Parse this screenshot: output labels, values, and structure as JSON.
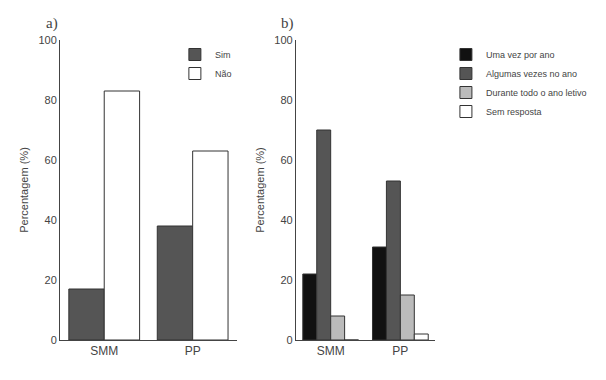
{
  "chart_data": [
    {
      "type": "bar",
      "title": "a)",
      "categories": [
        "SMM",
        "PP"
      ],
      "series": [
        {
          "name": "Sim",
          "color": "#555555",
          "values": [
            17,
            38
          ]
        },
        {
          "name": "Não",
          "color": "#ffffff",
          "values": [
            83,
            63
          ]
        }
      ],
      "ylabel": "Percentagem (%)",
      "ylim": [
        0,
        100
      ],
      "yticks": [
        0,
        20,
        40,
        60,
        80,
        100
      ],
      "grid": false,
      "legend": "upper right"
    },
    {
      "type": "bar",
      "title": "b)",
      "categories": [
        "SMM",
        "PP"
      ],
      "series": [
        {
          "name": "Uma vez por ano",
          "color": "#111111",
          "values": [
            22,
            31
          ]
        },
        {
          "name": "Algumas vezes no ano",
          "color": "#555555",
          "values": [
            70,
            53
          ]
        },
        {
          "name": "Durante todo o ano letivo",
          "color": "#bbbbbb",
          "values": [
            8,
            15
          ]
        },
        {
          "name": "Sem resposta",
          "color": "#ffffff",
          "values": [
            0,
            2
          ]
        }
      ],
      "ylabel": "Percentagem (%)",
      "ylim": [
        0,
        100
      ],
      "yticks": [
        0,
        20,
        40,
        60,
        80,
        100
      ],
      "grid": false,
      "legend": "right"
    }
  ]
}
